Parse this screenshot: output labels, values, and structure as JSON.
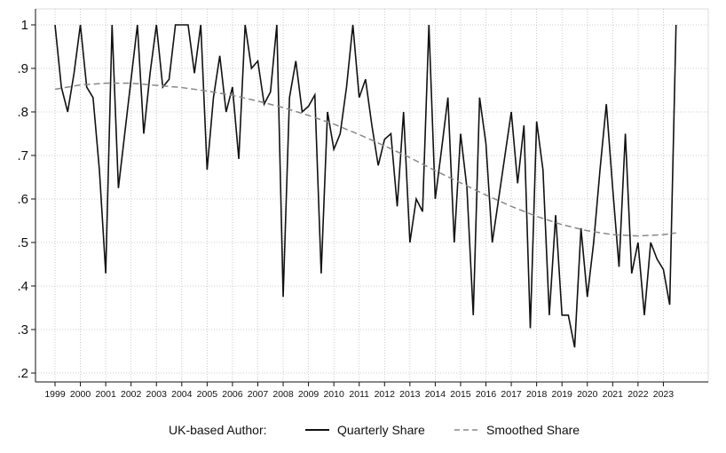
{
  "chart_data": {
    "type": "line",
    "title": "",
    "xlabel": "",
    "ylabel": "",
    "x_tick_labels": [
      "1999",
      "2000",
      "2001",
      "2002",
      "2003",
      "2004",
      "2005",
      "2006",
      "2007",
      "2008",
      "2009",
      "2010",
      "2011",
      "2012",
      "2013",
      "2014",
      "2015",
      "2016",
      "2017",
      "2018",
      "2019",
      "2020",
      "2021",
      "2022",
      "2023"
    ],
    "y_tick_labels": [
      "1",
      ".9",
      ".8",
      ".7",
      ".6",
      ".5",
      ".4",
      ".3",
      ".2"
    ],
    "y_tick_values": [
      1,
      0.9,
      0.8,
      0.7,
      0.6,
      0.5,
      0.4,
      0.3,
      0.2
    ],
    "xlim": [
      1999,
      2024
    ],
    "ylim": [
      0.2,
      1.0
    ],
    "grid": true,
    "legend_position": "bottom",
    "legend_title": "UK-based Author:",
    "series": [
      {
        "name": "Quarterly Share",
        "style": "solid",
        "color": "#111111",
        "x": [
          1999.0,
          1999.25,
          1999.5,
          1999.75,
          2000.0,
          2000.25,
          2000.5,
          2000.75,
          2001.0,
          2001.25,
          2001.5,
          2001.75,
          2002.0,
          2002.25,
          2002.5,
          2002.75,
          2003.0,
          2003.25,
          2003.5,
          2003.75,
          2004.0,
          2004.25,
          2004.5,
          2004.75,
          2005.0,
          2005.25,
          2005.5,
          2005.75,
          2006.0,
          2006.25,
          2006.5,
          2006.75,
          2007.0,
          2007.25,
          2007.5,
          2007.75,
          2008.0,
          2008.25,
          2008.5,
          2008.75,
          2009.0,
          2009.25,
          2009.5,
          2009.75,
          2010.0,
          2010.25,
          2010.5,
          2010.75,
          2011.0,
          2011.25,
          2011.5,
          2011.75,
          2012.0,
          2012.25,
          2012.5,
          2012.75,
          2013.0,
          2013.25,
          2013.5,
          2013.75,
          2014.0,
          2014.25,
          2014.5,
          2014.75,
          2015.0,
          2015.25,
          2015.5,
          2015.75,
          2016.0,
          2016.25,
          2016.5,
          2016.75,
          2017.0,
          2017.25,
          2017.5,
          2017.75,
          2018.0,
          2018.25,
          2018.5,
          2018.75,
          2019.0,
          2019.25,
          2019.5,
          2019.75,
          2020.0,
          2020.25,
          2020.5,
          2020.75,
          2021.0,
          2021.25,
          2021.5,
          2021.75,
          2022.0,
          2022.25,
          2022.5,
          2022.75,
          2023.0,
          2023.25,
          2023.5
        ],
        "y": [
          1.0,
          0.857,
          0.8,
          0.889,
          1.0,
          0.857,
          0.833,
          0.667,
          0.429,
          1.0,
          0.625,
          0.75,
          0.875,
          1.0,
          0.75,
          0.889,
          1.0,
          0.857,
          0.875,
          1.0,
          1.0,
          1.0,
          0.889,
          1.0,
          0.667,
          0.833,
          0.929,
          0.8,
          0.857,
          0.692,
          1.0,
          0.9,
          0.917,
          0.818,
          0.846,
          1.0,
          0.375,
          0.833,
          0.917,
          0.8,
          0.813,
          0.839,
          0.429,
          0.8,
          0.714,
          0.75,
          0.857,
          1.0,
          0.833,
          0.875,
          0.769,
          0.677,
          0.737,
          0.75,
          0.583,
          0.8,
          0.5,
          0.6,
          0.571,
          1.0,
          0.6,
          0.714,
          0.833,
          0.5,
          0.75,
          0.625,
          0.333,
          0.833,
          0.727,
          0.5,
          0.6,
          0.7,
          0.8,
          0.636,
          0.769,
          0.303,
          0.778,
          0.667,
          0.333,
          0.563,
          0.333,
          0.333,
          0.259,
          0.533,
          0.375,
          0.5,
          0.667,
          0.818,
          0.625,
          0.444,
          0.75,
          0.429,
          0.5,
          0.333,
          0.5,
          0.462,
          0.438,
          0.357,
          1.0
        ]
      },
      {
        "name": "Smoothed Share",
        "style": "dashed",
        "color": "#888888",
        "x": [
          1999.0,
          2000.0,
          2001.0,
          2002.0,
          2003.0,
          2004.0,
          2005.0,
          2006.0,
          2007.0,
          2008.0,
          2009.0,
          2010.0,
          2011.0,
          2012.0,
          2013.0,
          2014.0,
          2015.0,
          2016.0,
          2017.0,
          2018.0,
          2019.0,
          2020.0,
          2021.0,
          2022.0,
          2023.0,
          2023.5
        ],
        "y": [
          0.852,
          0.862,
          0.866,
          0.866,
          0.861,
          0.856,
          0.848,
          0.838,
          0.825,
          0.81,
          0.792,
          0.772,
          0.748,
          0.722,
          0.695,
          0.665,
          0.637,
          0.609,
          0.583,
          0.56,
          0.541,
          0.527,
          0.518,
          0.515,
          0.518,
          0.522
        ]
      }
    ]
  }
}
